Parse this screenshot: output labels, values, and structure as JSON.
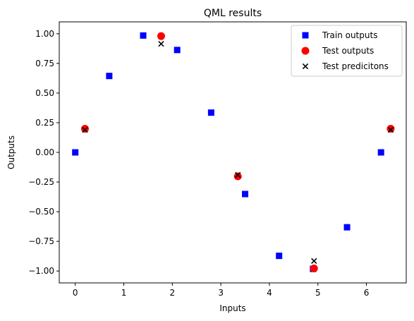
{
  "chart_data": {
    "type": "scatter",
    "title": "QML results",
    "xlabel": "Inputs",
    "ylabel": "Outputs",
    "xlim": [
      -0.33,
      6.82
    ],
    "ylim": [
      -1.1,
      1.1
    ],
    "xticks": [
      0,
      1,
      2,
      3,
      4,
      5,
      6
    ],
    "xtick_labels": [
      "0",
      "1",
      "2",
      "3",
      "4",
      "5",
      "6"
    ],
    "yticks": [
      -1.0,
      -0.75,
      -0.5,
      -0.25,
      0.0,
      0.25,
      0.5,
      0.75,
      1.0
    ],
    "ytick_labels": [
      "−1.00",
      "−0.75",
      "−0.50",
      "−0.25",
      "0.00",
      "0.25",
      "0.50",
      "0.75",
      "1.00"
    ],
    "grid": false,
    "legend_position": "top-right",
    "series": [
      {
        "name": "Train outputs",
        "marker": "square",
        "color": "#0000ff",
        "points": [
          {
            "x": 0.0,
            "y": 0.0
          },
          {
            "x": 0.7,
            "y": 0.644
          },
          {
            "x": 1.4,
            "y": 0.985
          },
          {
            "x": 2.1,
            "y": 0.863
          },
          {
            "x": 2.8,
            "y": 0.335
          },
          {
            "x": 3.5,
            "y": -0.351
          },
          {
            "x": 4.2,
            "y": -0.872
          },
          {
            "x": 4.9,
            "y": -0.982
          },
          {
            "x": 5.6,
            "y": -0.631
          },
          {
            "x": 6.3,
            "y": 0.0
          }
        ]
      },
      {
        "name": "Test outputs",
        "marker": "circle",
        "color": "#ff0000",
        "points": [
          {
            "x": 0.2,
            "y": 0.199
          },
          {
            "x": 1.77,
            "y": 0.98
          },
          {
            "x": 3.35,
            "y": -0.202
          },
          {
            "x": 4.92,
            "y": -0.978
          },
          {
            "x": 6.5,
            "y": 0.199
          }
        ]
      },
      {
        "name": "Test predicitons",
        "marker": "x",
        "color": "#000000",
        "points": [
          {
            "x": 0.2,
            "y": 0.19
          },
          {
            "x": 1.77,
            "y": 0.915
          },
          {
            "x": 3.35,
            "y": -0.19
          },
          {
            "x": 4.92,
            "y": -0.915
          },
          {
            "x": 6.5,
            "y": 0.19
          }
        ]
      }
    ]
  }
}
